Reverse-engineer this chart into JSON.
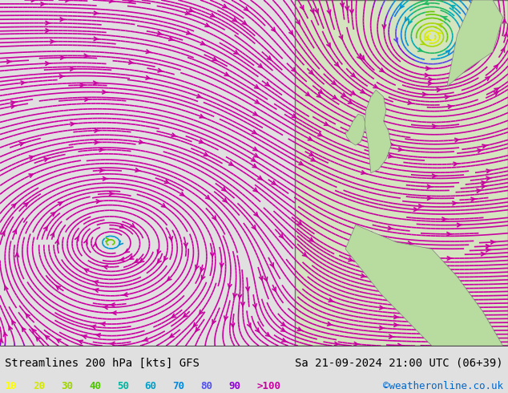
{
  "title_left": "Streamlines 200 hPa [kts] GFS",
  "title_right": "Sa 21-09-2024 21:00 UTC (06+39)",
  "credit": "©weatheronline.co.uk",
  "legend_values": [
    "10",
    "20",
    "30",
    "40",
    "50",
    "60",
    "70",
    "80",
    "90",
    ">100"
  ],
  "legend_colors": [
    "#ffff00",
    "#d4e800",
    "#9ed400",
    "#4cc400",
    "#00b4a0",
    "#00a0c8",
    "#0088e0",
    "#5050f0",
    "#9000d8",
    "#c800a0"
  ],
  "bg_color": "#e8e8e8",
  "land_color": "#d0f0a0",
  "water_color": "#d8f0f8",
  "streamline_cmap": [
    "#ffff00",
    "#d4e800",
    "#9ed400",
    "#4cc400",
    "#00b4a0",
    "#00a0c8",
    "#0088e0",
    "#5050f0",
    "#9000d8",
    "#c800a0"
  ],
  "speed_levels": [
    10,
    20,
    30,
    40,
    50,
    60,
    70,
    80,
    90,
    100
  ],
  "figsize": [
    6.34,
    4.9
  ],
  "dpi": 100
}
